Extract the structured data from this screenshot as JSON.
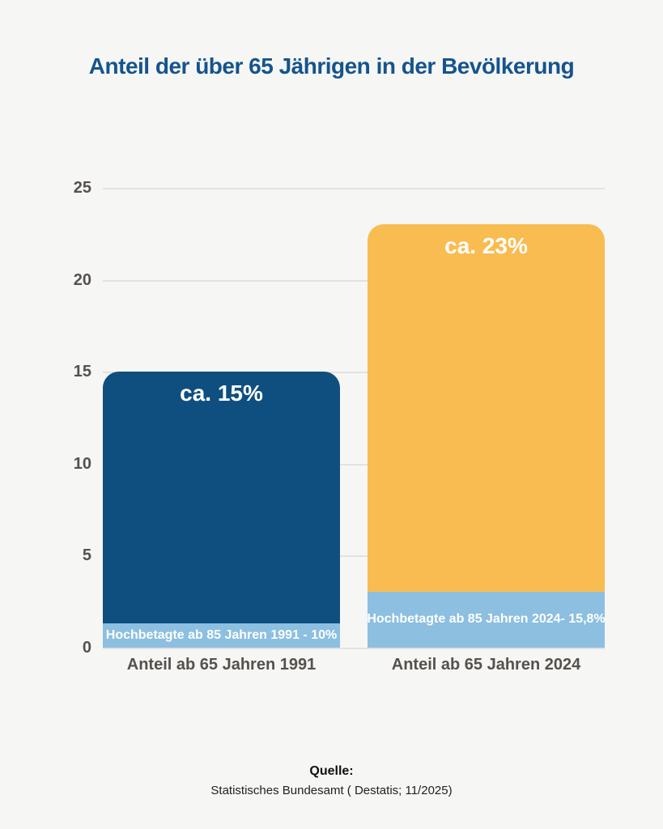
{
  "title": {
    "text": "Anteil der über 65 Jährigen in der Bevölkerung",
    "color": "#15548e"
  },
  "chart_data": {
    "type": "bar",
    "title": "Anteil der über 65 Jährigen in der Bevölkerung",
    "categories": [
      "Anteil ab 65 Jahren 1991",
      "Anteil ab 65 Jahren 2024"
    ],
    "series": [
      {
        "name": "Anteil ab 65 Jahren",
        "values": [
          15,
          23
        ],
        "value_labels": [
          "ca. 15%",
          "ca. 23%"
        ],
        "colors": [
          "#0f4f80",
          "#f9bc51"
        ]
      },
      {
        "name": "Hochbetagte ab 85 Jahren",
        "drawn_values": [
          1.3,
          3.05
        ],
        "value_labels": [
          "Hochbetagte ab 85 Jahren 1991 - 10%",
          "Hochbetagte ab 85 Jahren 2024- 15,8%"
        ],
        "color": "#8cbfe0"
      }
    ],
    "ylim": [
      0,
      25
    ],
    "yticks": [
      25,
      20,
      15,
      10,
      5,
      0
    ],
    "grid": true,
    "legend": false,
    "background": "#f6f6f4",
    "gridline_color": "#e3e2df",
    "tick_color": "#56514c",
    "value_label_color": "#ffffff"
  },
  "footer": {
    "label": "Quelle:",
    "source": "Statistisches Bundesamt ( Destatis; 11/2025)"
  }
}
